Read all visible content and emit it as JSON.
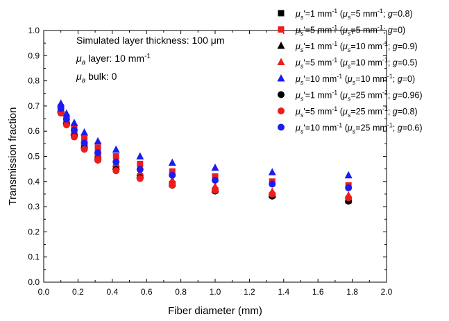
{
  "chart_data": {
    "type": "scatter",
    "title": "",
    "xlabel": "Fiber diameter (mm)",
    "ylabel": "Transmission fraction",
    "xlim": [
      0.0,
      2.0
    ],
    "ylim": [
      0.0,
      1.0
    ],
    "x_ticks": [
      "0.0",
      "0.2",
      "0.4",
      "0.6",
      "0.8",
      "1.0",
      "1.2",
      "1.4",
      "1.6",
      "1.8",
      "2.0"
    ],
    "y_ticks": [
      "0.0",
      "0.1",
      "0.2",
      "0.3",
      "0.4",
      "0.5",
      "0.6",
      "0.7",
      "0.8",
      "0.9",
      "1.0"
    ],
    "grid": false,
    "legend_position": "top-right",
    "annotations": [
      {
        "id": "thickness",
        "parts": [
          {
            "t": "Simulated layer thickness: 100 "
          },
          {
            "t": "μ"
          },
          {
            "t": "m"
          }
        ]
      },
      {
        "id": "mua-layer",
        "parts": [
          {
            "t": "μ",
            "style": "italic"
          },
          {
            "t": "a",
            "style": "sub-italic"
          },
          {
            "t": " layer: 10 mm"
          },
          {
            "t": "-1",
            "style": "sup"
          }
        ]
      },
      {
        "id": "mua-bulk",
        "parts": [
          {
            "t": "μ",
            "style": "italic"
          },
          {
            "t": "a",
            "style": "sub-italic"
          },
          {
            "t": " bulk: 0"
          }
        ]
      }
    ],
    "x": [
      0.1,
      0.133,
      0.178,
      0.237,
      0.316,
      0.422,
      0.562,
      0.75,
      1.0,
      1.333,
      1.778
    ],
    "series": [
      {
        "name": "μs'=1 mm-1 (μs=5 mm-1; g=0.8)",
        "marker": "square",
        "color": "#000000",
        "label_parts": [
          {
            "t": "μ",
            "style": "italic"
          },
          {
            "t": "s",
            "style": "sub-italic"
          },
          {
            "t": "'=1 mm"
          },
          {
            "t": "-1",
            "style": "sup"
          },
          {
            "t": " ("
          },
          {
            "t": "μ",
            "style": "italic"
          },
          {
            "t": "s",
            "style": "sub-italic"
          },
          {
            "t": "=5 mm"
          },
          {
            "t": "-1",
            "style": "sup"
          },
          {
            "t": "; "
          },
          {
            "t": "g",
            "style": "italic"
          },
          {
            "t": "=0.8)"
          }
        ],
        "values": [
          0.685,
          0.635,
          0.59,
          0.54,
          0.495,
          0.455,
          0.42,
          0.39,
          0.365,
          0.345,
          0.325
        ]
      },
      {
        "name": "μs'=5 mm-1 (μs=5 mm-1; g=0)",
        "marker": "square",
        "color": "#ee1c1c",
        "label_parts": [
          {
            "t": "μ",
            "style": "italic"
          },
          {
            "t": "s",
            "style": "sub-italic"
          },
          {
            "t": "'=5 mm"
          },
          {
            "t": "-1",
            "style": "sup"
          },
          {
            "t": " ("
          },
          {
            "t": "μ",
            "style": "italic"
          },
          {
            "t": "s",
            "style": "sub-italic"
          },
          {
            "t": "=5 mm"
          },
          {
            "t": "-1",
            "style": "sup"
          },
          {
            "t": "; "
          },
          {
            "t": "g",
            "style": "italic"
          },
          {
            "t": "=0)"
          }
        ],
        "values": [
          0.695,
          0.655,
          0.615,
          0.57,
          0.535,
          0.5,
          0.47,
          0.44,
          0.42,
          0.4,
          0.385
        ]
      },
      {
        "name": "μs'=1 mm-1 (μs=10 mm-1; g=0.9)",
        "marker": "triangle",
        "color": "#000000",
        "label_parts": [
          {
            "t": "μ",
            "style": "italic"
          },
          {
            "t": "s",
            "style": "sub-italic"
          },
          {
            "t": "'=1 mm"
          },
          {
            "t": "-1",
            "style": "sup"
          },
          {
            "t": " ("
          },
          {
            "t": "μ",
            "style": "italic"
          },
          {
            "t": "s",
            "style": "sub-italic"
          },
          {
            "t": "=10 mm"
          },
          {
            "t": "-1",
            "style": "sup"
          },
          {
            "t": "; "
          },
          {
            "t": "g",
            "style": "italic"
          },
          {
            "t": "=0.9)"
          }
        ],
        "values": [
          0.685,
          0.64,
          0.595,
          0.545,
          0.5,
          0.46,
          0.425,
          0.395,
          0.37,
          0.35,
          0.33
        ]
      },
      {
        "name": "μs'=5 mm-1 (μs=10 mm-1; g=0.5)",
        "marker": "triangle",
        "color": "#ee1c1c",
        "label_parts": [
          {
            "t": "μ",
            "style": "italic"
          },
          {
            "t": "s",
            "style": "sub-italic"
          },
          {
            "t": "'=5 mm"
          },
          {
            "t": "-1",
            "style": "sup"
          },
          {
            "t": " ("
          },
          {
            "t": "μ",
            "style": "italic"
          },
          {
            "t": "s",
            "style": "sub-italic"
          },
          {
            "t": "=10 mm"
          },
          {
            "t": "-1",
            "style": "sup"
          },
          {
            "t": "; "
          },
          {
            "t": "g",
            "style": "italic"
          },
          {
            "t": "=0.5)"
          }
        ],
        "values": [
          0.69,
          0.645,
          0.6,
          0.555,
          0.51,
          0.47,
          0.435,
          0.405,
          0.38,
          0.36,
          0.345
        ]
      },
      {
        "name": "μs'=10 mm-1 (μs=10 mm-1; g=0)",
        "marker": "triangle",
        "color": "#1c1cee",
        "label_parts": [
          {
            "t": "μ",
            "style": "italic"
          },
          {
            "t": "s",
            "style": "sub-italic"
          },
          {
            "t": "'=10 mm"
          },
          {
            "t": "-1",
            "style": "sup"
          },
          {
            "t": " ("
          },
          {
            "t": "μ",
            "style": "italic"
          },
          {
            "t": "s",
            "style": "sub-italic"
          },
          {
            "t": "=10 mm"
          },
          {
            "t": "-1",
            "style": "sup"
          },
          {
            "t": "; "
          },
          {
            "t": "g",
            "style": "italic"
          },
          {
            "t": "=0)"
          }
        ],
        "values": [
          0.71,
          0.67,
          0.633,
          0.595,
          0.56,
          0.527,
          0.5,
          0.475,
          0.455,
          0.437,
          0.425
        ]
      },
      {
        "name": "μs'=1 mm-1 (μs=25 mm-1; g=0.96)",
        "marker": "circle",
        "color": "#000000",
        "label_parts": [
          {
            "t": "μ",
            "style": "italic"
          },
          {
            "t": "s",
            "style": "sub-italic"
          },
          {
            "t": "'=1 mm"
          },
          {
            "t": "-1",
            "style": "sup"
          },
          {
            "t": " ("
          },
          {
            "t": "μ",
            "style": "italic"
          },
          {
            "t": "s",
            "style": "sub-italic"
          },
          {
            "t": "=25 mm"
          },
          {
            "t": "-1",
            "style": "sup"
          },
          {
            "t": "; "
          },
          {
            "t": "g",
            "style": "italic"
          },
          {
            "t": "=0.96)"
          }
        ],
        "values": [
          0.675,
          0.628,
          0.58,
          0.53,
          0.485,
          0.448,
          0.415,
          0.385,
          0.362,
          0.342,
          0.322
        ]
      },
      {
        "name": "μs'=5 mm-1 (μs=25 mm-1; g=0.8)",
        "marker": "circle",
        "color": "#ee1c1c",
        "label_parts": [
          {
            "t": "μ",
            "style": "italic"
          },
          {
            "t": "s",
            "style": "sub-italic"
          },
          {
            "t": "'=5 mm"
          },
          {
            "t": "-1",
            "style": "sup"
          },
          {
            "t": " ("
          },
          {
            "t": "μ",
            "style": "italic"
          },
          {
            "t": "s",
            "style": "sub-italic"
          },
          {
            "t": "=25 mm"
          },
          {
            "t": "-1",
            "style": "sup"
          },
          {
            "t": "; "
          },
          {
            "t": "g",
            "style": "italic"
          },
          {
            "t": "=0.8)"
          }
        ],
        "values": [
          0.672,
          0.625,
          0.577,
          0.528,
          0.485,
          0.443,
          0.412,
          0.385,
          0.365,
          0.35,
          0.335
        ]
      },
      {
        "name": "μs'=10 mm-1 (μs=25 mm-1; g=0.6)",
        "marker": "circle",
        "color": "#1c1cee",
        "label_parts": [
          {
            "t": "μ",
            "style": "italic"
          },
          {
            "t": "s",
            "style": "sub-italic"
          },
          {
            "t": "'=10 mm"
          },
          {
            "t": "-1",
            "style": "sup"
          },
          {
            "t": " ("
          },
          {
            "t": "μ",
            "style": "italic"
          },
          {
            "t": "s",
            "style": "sub-italic"
          },
          {
            "t": "=25 mm"
          },
          {
            "t": "-1",
            "style": "sup"
          },
          {
            "t": "; "
          },
          {
            "t": "g",
            "style": "italic"
          },
          {
            "t": "=0.6)"
          }
        ],
        "values": [
          0.69,
          0.648,
          0.604,
          0.553,
          0.514,
          0.478,
          0.448,
          0.425,
          0.405,
          0.39,
          0.375
        ]
      }
    ]
  }
}
